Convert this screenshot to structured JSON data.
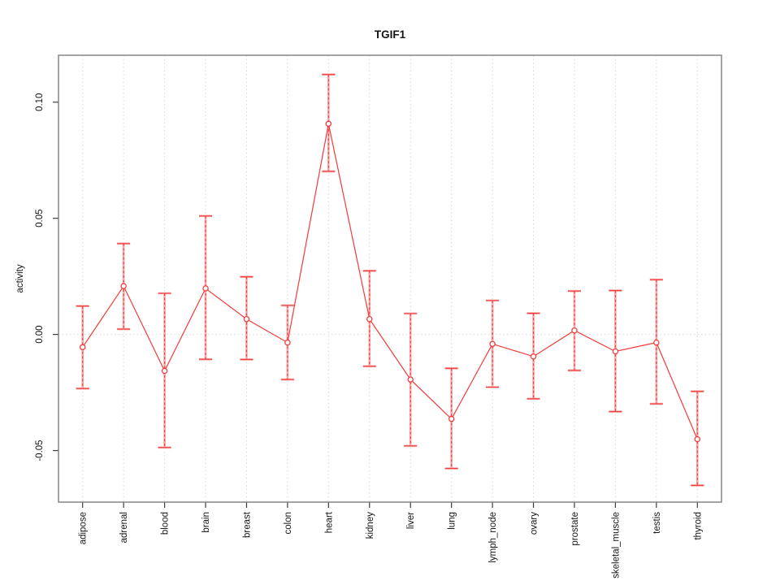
{
  "chart_data": {
    "type": "line",
    "title": "TGIF1",
    "xlabel": "",
    "ylabel": "activity",
    "legend_position": "none",
    "categories": [
      "adipose",
      "adrenal",
      "blood",
      "brain",
      "breast",
      "colon",
      "heart",
      "kidney",
      "liver",
      "lung",
      "lymph_node",
      "ovary",
      "prostate",
      "skeletal_muscle",
      "testis",
      "thyroid"
    ],
    "series": [
      {
        "name": "TGIF1 activity",
        "marker": "open-circle",
        "values": [
          -0.0055,
          0.0208,
          -0.0157,
          0.0198,
          0.0066,
          -0.0035,
          0.0907,
          0.0066,
          -0.0194,
          -0.0364,
          -0.0041,
          -0.0095,
          0.0017,
          -0.0073,
          -0.0035,
          -0.0451
        ],
        "ci_lower": [
          -0.0233,
          0.0023,
          -0.0487,
          -0.0107,
          -0.0108,
          -0.0194,
          0.0702,
          -0.0137,
          -0.048,
          -0.0577,
          -0.0227,
          -0.0277,
          -0.0155,
          -0.0332,
          -0.0299,
          -0.065
        ],
        "ci_upper": [
          0.0122,
          0.0391,
          0.0177,
          0.051,
          0.0248,
          0.0125,
          0.1119,
          0.0274,
          0.009,
          -0.0146,
          0.0146,
          0.0091,
          0.0187,
          0.0189,
          0.0236,
          -0.0245
        ]
      }
    ],
    "y_tick_values": [
      -0.05,
      0.0,
      0.05,
      0.1
    ],
    "y_tick_labels": [
      "-0.05",
      "0.00",
      "0.05",
      "0.10"
    ],
    "ylim": [
      -0.0722,
      0.1202
    ],
    "grid": {
      "vertical": "dotted-per-category",
      "zero_line": "dotted"
    },
    "colors": {
      "series": "#f23b3b",
      "ci_band": "#f9a8a8",
      "grid": "#d9d9d9",
      "box": "#7d7d7d",
      "tick": "#3c3c3c",
      "text": "#141414"
    }
  }
}
